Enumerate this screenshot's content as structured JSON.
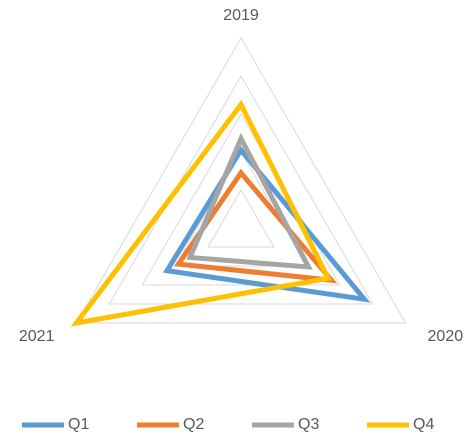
{
  "chart_data": {
    "type": "radar",
    "categories": [
      "2019",
      "2020",
      "2021"
    ],
    "series": [
      {
        "name": "Q1",
        "color": "#5b9bd5",
        "values": [
          41,
          75,
          45
        ]
      },
      {
        "name": "Q2",
        "color": "#ed7d31",
        "values": [
          29,
          55,
          38
        ]
      },
      {
        "name": "Q3",
        "color": "#a5a5a5",
        "values": [
          47,
          41,
          31
        ]
      },
      {
        "name": "Q4",
        "color": "#ffc000",
        "values": [
          65,
          53,
          100
        ]
      }
    ],
    "rlim": [
      0,
      100
    ],
    "rticks": [
      20,
      40,
      60,
      80,
      100
    ],
    "grid": true,
    "legend": "bottom"
  }
}
